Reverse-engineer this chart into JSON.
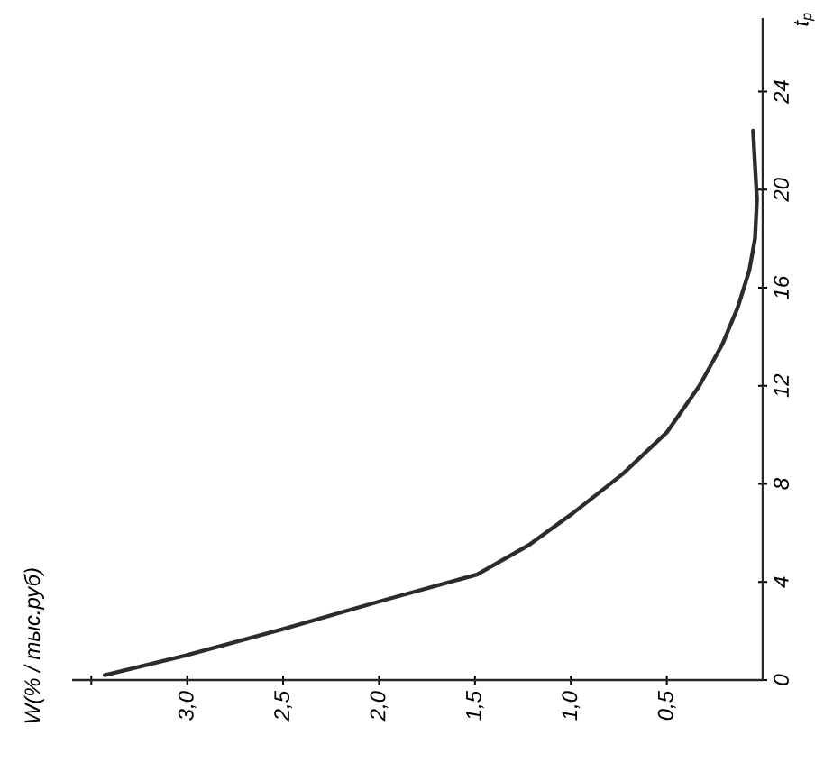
{
  "chart_data": {
    "type": "line",
    "annotations": [
      "W(% / тыс.руб)"
    ],
    "ylabel": "t$_{p}$",
    "x": [
      3.43,
      3.01,
      2.49,
      2.0,
      1.49,
      1.22,
      0.99,
      0.73,
      0.5,
      0.33,
      0.21,
      0.13,
      0.07,
      0.04,
      0.03,
      0.04,
      0.05
    ],
    "values": [
      0.2,
      1.0,
      2.1,
      3.2,
      4.3,
      5.5,
      6.8,
      8.4,
      10.1,
      12.0,
      13.7,
      15.2,
      16.7,
      18.0,
      19.6,
      21.0,
      22.4
    ],
    "color": "#2e2a2e",
    "ylim": [
      0,
      27
    ],
    "yticks": [
      0,
      4,
      8,
      12,
      16,
      20,
      24
    ],
    "xlim": [
      3.6,
      0
    ],
    "xticks": [
      {
        "value": 0.5,
        "label": "0,5"
      },
      {
        "value": 1.0,
        "label": "1,0"
      },
      {
        "value": 1.5,
        "label": "1,5"
      },
      {
        "value": 2.0,
        "label": "2,0"
      },
      {
        "value": 2.5,
        "label": "2,5"
      },
      {
        "value": 3.0,
        "label": "3,0"
      },
      {
        "value": 3.5,
        "label": null
      }
    ]
  }
}
